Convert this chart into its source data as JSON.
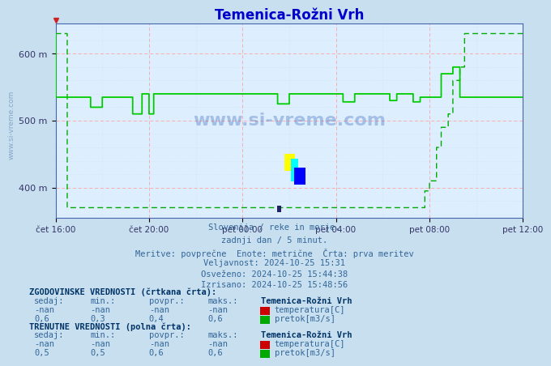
{
  "title": "Temenica-Rožni Vrh",
  "title_color": "#0000cc",
  "background_color": "#c8dff0",
  "plot_bg_color": "#ddeeff",
  "ylim": [
    355,
    645
  ],
  "yticks": [
    400,
    500,
    600
  ],
  "ytick_labels": [
    "400 m",
    "500 m",
    "600 m"
  ],
  "xlabel_ticks": [
    "čet 16:00",
    "čet 20:00",
    "pet 00:00",
    "pet 04:00",
    "pet 08:00",
    "pet 12:00"
  ],
  "x_positions": [
    0,
    4,
    8,
    12,
    16,
    20
  ],
  "line_color_solid": "#00cc00",
  "line_color_dashed": "#00aa00",
  "info_lines": [
    "Slovenija / reke in morje.",
    "zadnji dan / 5 minut.",
    "Meritve: povprečne  Enote: metrične  Črta: prva meritev",
    "Veljavnost: 2024-10-25 15:31",
    "Osveženo: 2024-10-25 15:44:38",
    "Izrisano: 2024-10-25 15:48:56"
  ],
  "hist_label": "ZGODOVINSKE VREDNOSTI (črtkana črta):",
  "curr_label": "TRENUTNE VREDNOSTI (polna črta):",
  "table_headers": [
    "sedaj:",
    "min.:",
    "povpr.:",
    "maks.:"
  ],
  "hist_temp": [
    "-nan",
    "-nan",
    "-nan",
    "-nan"
  ],
  "hist_pretok": [
    "0,6",
    "0,3",
    "0,4",
    "0,6"
  ],
  "curr_temp": [
    "-nan",
    "-nan",
    "-nan",
    "-nan"
  ],
  "curr_pretok": [
    "0,5",
    "0,5",
    "0,6",
    "0,6"
  ],
  "station_name": "Temenica-Rožni Vrh",
  "temp_label": "temperatura[C]",
  "pretok_label": "pretok[m3/s]",
  "temp_color": "#cc0000",
  "pretok_color": "#00aa00",
  "watermark_text": "www.si-vreme.com",
  "sidebar_text": "www.si-vreme.com"
}
